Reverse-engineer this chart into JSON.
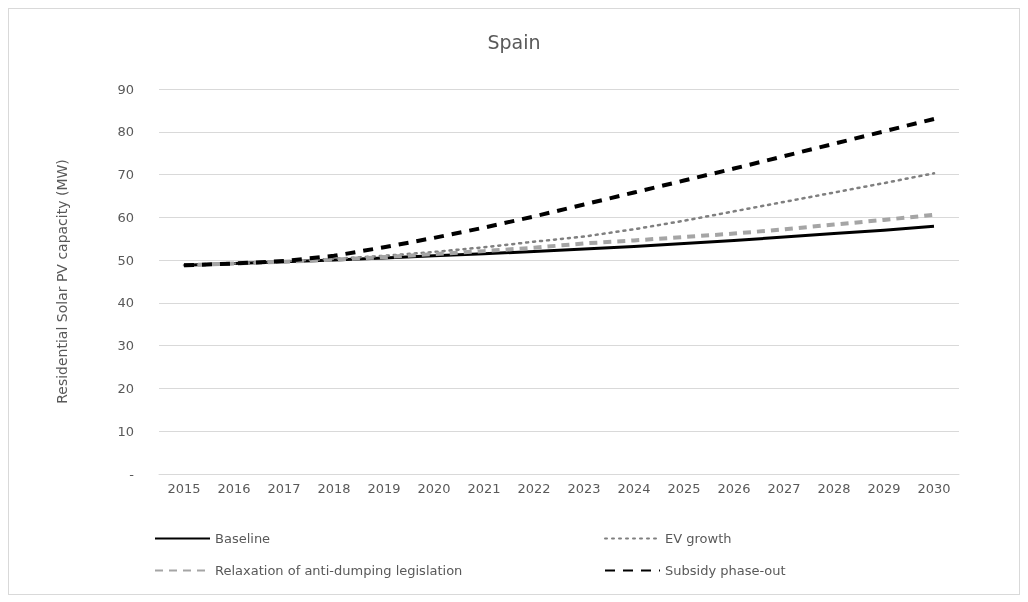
{
  "chart_data": {
    "type": "line",
    "title": "Spain",
    "ylabel": "Residential Solar PV capacity (MW)",
    "categories": [
      "2015",
      "2016",
      "2017",
      "2018",
      "2019",
      "2020",
      "2021",
      "2022",
      "2023",
      "2024",
      "2025",
      "2026",
      "2027",
      "2028",
      "2029",
      "2030"
    ],
    "series": [
      {
        "name": "Baseline",
        "color": "#000000",
        "line_style": "solid",
        "values": [
          48.8,
          49.2,
          49.6,
          50.0,
          50.5,
          51.0,
          51.5,
          52.0,
          52.6,
          53.2,
          53.9,
          54.6,
          55.4,
          56.2,
          57.0,
          57.9
        ]
      },
      {
        "name": "EV growth",
        "color": "#7f7f7f",
        "line_style": "dotted",
        "values": [
          48.8,
          49.2,
          49.7,
          50.3,
          51.0,
          51.9,
          53.0,
          54.3,
          55.5,
          57.2,
          59.2,
          61.4,
          63.6,
          65.8,
          68.0,
          70.3
        ]
      },
      {
        "name": "Relaxation of anti-dumping legislation",
        "color": "#a5a5a5",
        "line_style": "dashed",
        "values": [
          48.8,
          49.2,
          49.6,
          50.1,
          50.7,
          51.4,
          52.1,
          52.9,
          53.9,
          54.6,
          55.4,
          56.2,
          57.2,
          58.3,
          59.4,
          60.6
        ]
      },
      {
        "name": "Subsidy phase-out",
        "color": "#000000",
        "line_style": "dashed",
        "values": [
          48.8,
          49.2,
          49.8,
          51.0,
          53.0,
          55.2,
          57.6,
          60.2,
          63.0,
          65.8,
          68.6,
          71.4,
          74.3,
          77.2,
          80.1,
          83.0
        ]
      }
    ],
    "ylim": [
      0,
      90
    ],
    "yticks": [
      {
        "value": 0,
        "label": "-"
      },
      10,
      20,
      30,
      40,
      50,
      60,
      70,
      80,
      90
    ],
    "grid": "y",
    "legend": "bottom",
    "marker": "none"
  }
}
